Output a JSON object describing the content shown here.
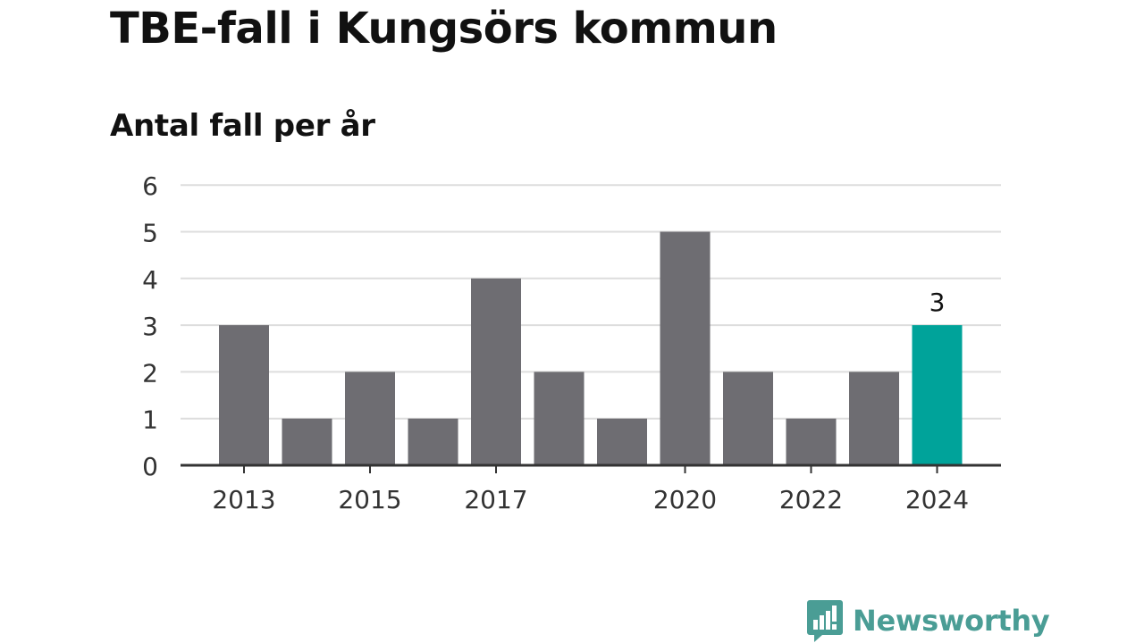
{
  "title": "TBE-fall i Kungsörs kommun",
  "subtitle": "Antal fall per år",
  "brand": {
    "name": "Newsworthy",
    "icon": "newsworthy-logo-icon",
    "color": "#4a9d95"
  },
  "colors": {
    "bar": "#6e6d72",
    "highlight": "#00a39a",
    "grid": "#dddddd",
    "axis": "#333333",
    "tick_label": "#333333"
  },
  "chart_data": {
    "type": "bar",
    "categories": [
      "2013",
      "2014",
      "2015",
      "2016",
      "2017",
      "2018",
      "2019",
      "2020",
      "2021",
      "2022",
      "2023",
      "2024"
    ],
    "values": [
      3,
      1,
      2,
      1,
      4,
      2,
      1,
      5,
      2,
      1,
      2,
      3
    ],
    "x_tick_labels": [
      "2013",
      "2015",
      "2017",
      "2020",
      "2022",
      "2024"
    ],
    "y_ticks": [
      0,
      1,
      2,
      3,
      4,
      5,
      6
    ],
    "ylim": [
      0,
      6
    ],
    "grid": "horizontal",
    "highlight_category": "2024",
    "data_labels": [
      {
        "category": "2024",
        "text": "3"
      }
    ],
    "xlabel": "",
    "ylabel": ""
  }
}
